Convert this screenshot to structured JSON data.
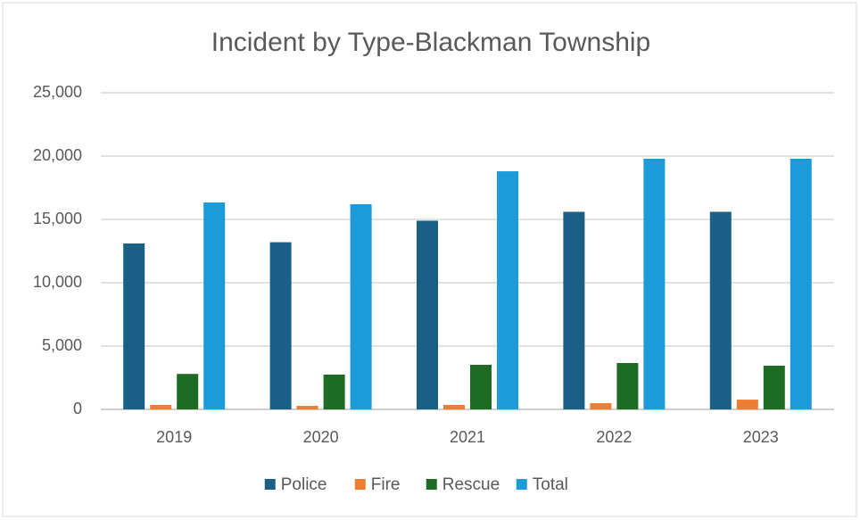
{
  "chart_data": {
    "type": "bar",
    "title": "Incident by Type-Blackman Township",
    "categories": [
      "2019",
      "2020",
      "2021",
      "2022",
      "2023"
    ],
    "series": [
      {
        "name": "Police",
        "color": "#1a5f85",
        "values": [
          13100,
          13200,
          14900,
          15600,
          15600
        ]
      },
      {
        "name": "Fire",
        "color": "#ed7d31",
        "values": [
          350,
          280,
          350,
          490,
          770
        ]
      },
      {
        "name": "Rescue",
        "color": "#1e6b24",
        "values": [
          2800,
          2750,
          3520,
          3660,
          3450
        ]
      },
      {
        "name": "Total",
        "color": "#1b9cd8",
        "values": [
          16340,
          16200,
          18800,
          19790,
          19790
        ]
      }
    ],
    "ylim": [
      0,
      25000
    ],
    "yticks": [
      0,
      {
        "value": 5000,
        "label": "5,000"
      },
      {
        "value": 10000,
        "label": "10,000"
      },
      {
        "value": 15000,
        "label": "15,000"
      },
      {
        "value": 20000,
        "label": "20,000"
      },
      {
        "value": 25000,
        "label": "25,000"
      }
    ],
    "grid": true,
    "legend": "bottom"
  }
}
